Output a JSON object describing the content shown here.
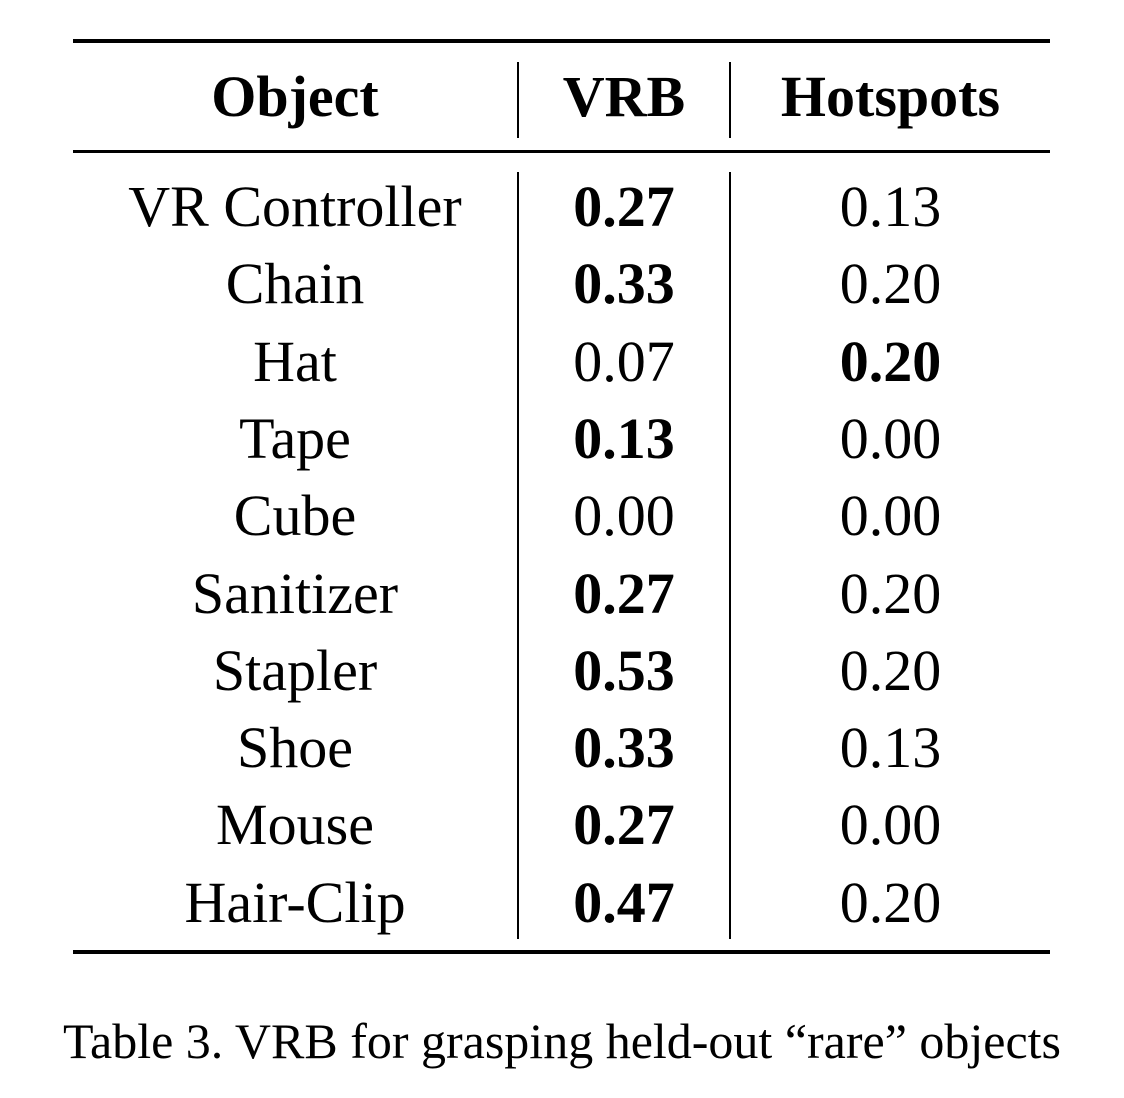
{
  "table": {
    "headers": [
      "Object",
      "VRB",
      "Hotspots"
    ],
    "rows": [
      {
        "object": "VR Controller",
        "vrb": "0.27",
        "hotspots": "0.13",
        "best": "vrb"
      },
      {
        "object": "Chain",
        "vrb": "0.33",
        "hotspots": "0.20",
        "best": "vrb"
      },
      {
        "object": "Hat",
        "vrb": "0.07",
        "hotspots": "0.20",
        "best": "hotspots"
      },
      {
        "object": "Tape",
        "vrb": "0.13",
        "hotspots": "0.00",
        "best": "vrb"
      },
      {
        "object": "Cube",
        "vrb": "0.00",
        "hotspots": "0.00",
        "best": "none"
      },
      {
        "object": "Sanitizer",
        "vrb": "0.27",
        "hotspots": "0.20",
        "best": "vrb"
      },
      {
        "object": "Stapler",
        "vrb": "0.53",
        "hotspots": "0.20",
        "best": "vrb"
      },
      {
        "object": "Shoe",
        "vrb": "0.33",
        "hotspots": "0.13",
        "best": "vrb"
      },
      {
        "object": "Mouse",
        "vrb": "0.27",
        "hotspots": "0.00",
        "best": "vrb"
      },
      {
        "object": "Hair-Clip",
        "vrb": "0.47",
        "hotspots": "0.20",
        "best": "vrb"
      }
    ]
  },
  "caption": "Table 3. VRB for grasping held-out “rare” objects"
}
